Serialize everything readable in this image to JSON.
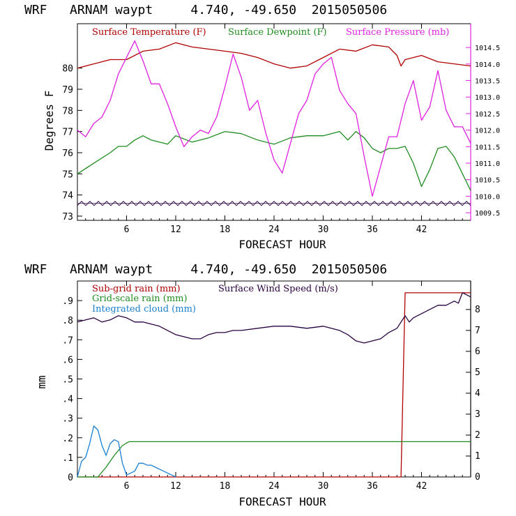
{
  "colors": {
    "temperature": "#b00000",
    "dewpoint": "#1e8c1e",
    "pressure": "#e020e0",
    "subgrid_rain": "#b00000",
    "grid_rain": "#1e8c1e",
    "cloud": "#1a7fd0",
    "wind": "#2a0040",
    "hatch": "#2a0040"
  },
  "chart_data": [
    {
      "type": "line",
      "title": "WRF   ARNAM waypt     4.740, -49.650  2015050506",
      "xlabel": "FORECAST HOUR",
      "ylabel": "Degrees F",
      "xlim": [
        0,
        48
      ],
      "ylim": [
        72.8,
        82.1
      ],
      "xticks": [
        6,
        12,
        18,
        24,
        30,
        36,
        42
      ],
      "xtick_labels": [
        "6",
        "12",
        "18",
        "24",
        "30",
        "36",
        "42"
      ],
      "yticks": [
        73,
        74,
        75,
        76,
        77,
        78,
        79,
        80
      ],
      "ytick_labels": [
        "73",
        "74",
        "75",
        "76",
        "77",
        "78",
        "79",
        "80"
      ],
      "y2lim": [
        1009.27,
        1015.22
      ],
      "y2ticks": [
        1009.5,
        1010.0,
        1010.5,
        1011.0,
        1011.5,
        1012.0,
        1012.5,
        1013.0,
        1013.5,
        1014.0,
        1014.5
      ],
      "y2tick_labels": [
        "1009.5",
        "1010.0",
        "1010.5",
        "1011.0",
        "1011.5",
        "1012.0",
        "1012.5",
        "1013.0",
        "1013.5",
        "1014.0",
        "1014.5"
      ],
      "legend": [
        "Surface Temperature (F)",
        "Surface Dewpoint (F)",
        "Surface Pressure (mb)"
      ],
      "series": [
        {
          "name": "Surface Temperature (F)",
          "axis": "left",
          "color_key": "temperature",
          "x": [
            0,
            2,
            4,
            6,
            8,
            10,
            12,
            14,
            16,
            18,
            20,
            22,
            24,
            26,
            28,
            30,
            32,
            34,
            36,
            38,
            39,
            39.5,
            40,
            42,
            44,
            46,
            48
          ],
          "values": [
            80.0,
            80.2,
            80.4,
            80.4,
            80.8,
            80.9,
            81.2,
            81.0,
            80.9,
            80.8,
            80.7,
            80.5,
            80.2,
            80.0,
            80.1,
            80.5,
            80.9,
            80.8,
            81.1,
            81.0,
            80.6,
            80.1,
            80.4,
            80.6,
            80.3,
            80.2,
            80.1
          ]
        },
        {
          "name": "Surface Dewpoint (F)",
          "axis": "left",
          "color_key": "dewpoint",
          "x": [
            0,
            2,
            4,
            5,
            6,
            7,
            8,
            9,
            10,
            11,
            12,
            14,
            16,
            18,
            20,
            22,
            24,
            26,
            28,
            30,
            32,
            33,
            34,
            35,
            36,
            37,
            38,
            39,
            40,
            41,
            42,
            43,
            44,
            45,
            46,
            47,
            48
          ],
          "values": [
            75.0,
            75.5,
            76.0,
            76.3,
            76.3,
            76.6,
            76.8,
            76.6,
            76.5,
            76.4,
            76.8,
            76.5,
            76.7,
            77.0,
            76.9,
            76.6,
            76.4,
            76.7,
            76.8,
            76.8,
            77.0,
            76.6,
            77.0,
            76.7,
            76.2,
            76.0,
            76.2,
            76.2,
            76.3,
            75.5,
            74.4,
            75.2,
            76.2,
            76.3,
            75.8,
            75.0,
            74.2
          ]
        },
        {
          "name": "Surface Pressure (mb)",
          "axis": "right",
          "color_key": "pressure",
          "x": [
            0,
            1,
            2,
            3,
            4,
            5,
            6,
            7,
            8,
            9,
            10,
            11,
            12,
            13,
            14,
            15,
            16,
            17,
            18,
            19,
            20,
            21,
            22,
            23,
            24,
            25,
            26,
            27,
            28,
            29,
            30,
            31,
            32,
            33,
            34,
            35,
            36,
            37,
            38,
            39,
            40,
            41,
            42,
            43,
            44,
            45,
            46,
            47,
            48
          ],
          "values": [
            1012.0,
            1011.8,
            1012.2,
            1012.4,
            1012.9,
            1013.7,
            1014.2,
            1014.7,
            1014.1,
            1013.4,
            1013.4,
            1012.8,
            1012.1,
            1011.5,
            1011.8,
            1012.0,
            1011.9,
            1012.4,
            1013.3,
            1014.3,
            1013.6,
            1012.6,
            1012.9,
            1011.9,
            1011.1,
            1010.7,
            1011.6,
            1012.5,
            1012.9,
            1013.7,
            1014.0,
            1014.2,
            1013.2,
            1012.8,
            1012.5,
            1011.2,
            1010.0,
            1010.9,
            1011.8,
            1011.8,
            1012.8,
            1013.5,
            1012.3,
            1012.7,
            1013.8,
            1012.6,
            1012.1,
            1012.1,
            1011.6
          ]
        },
        {
          "name": "Hatch band",
          "axis": "left",
          "color_key": "hatch",
          "style": "zigzag",
          "x": [
            0,
            48
          ],
          "values": [
            73.5,
            73.7
          ]
        }
      ]
    },
    {
      "type": "line",
      "title": "WRF   ARNAM waypt     4.740, -49.650  2015050506",
      "xlabel": "FORECAST HOUR",
      "ylabel": "mm",
      "xlim": [
        0,
        48
      ],
      "ylim": [
        0,
        1.0
      ],
      "xticks": [
        6,
        12,
        18,
        24,
        30,
        36,
        42
      ],
      "xtick_labels": [
        "6",
        "12",
        "18",
        "24",
        "30",
        "36",
        "42"
      ],
      "yticks": [
        0,
        0.1,
        0.2,
        0.3,
        0.4,
        0.5,
        0.6,
        0.7,
        0.8,
        0.9
      ],
      "ytick_labels": [
        "0",
        ".1",
        ".2",
        ".3",
        ".4",
        ".5",
        ".6",
        ".7",
        ".8",
        ".9"
      ],
      "y2lim": [
        0,
        9.36
      ],
      "y2ticks": [
        0,
        1,
        2,
        3,
        4,
        5,
        6,
        7,
        8
      ],
      "y2tick_labels": [
        "0",
        "1",
        "2",
        "3",
        "4",
        "5",
        "6",
        "7",
        "8"
      ],
      "legend": [
        "Sub-grid rain (mm)",
        "Grid-scale rain (mm)",
        "Integrated cloud (mm)",
        "Surface Wind Speed (m/s)"
      ],
      "series": [
        {
          "name": "Sub-grid rain (mm)",
          "axis": "left",
          "color_key": "subgrid_rain",
          "x": [
            0,
            39.5,
            40.0,
            48
          ],
          "values": [
            0,
            0,
            0.94,
            0.94
          ]
        },
        {
          "name": "Grid-scale rain (mm)",
          "axis": "left",
          "color_key": "grid_rain",
          "x": [
            0,
            2.5,
            3.5,
            4.5,
            5.5,
            6.3,
            7,
            48
          ],
          "values": [
            0,
            0,
            0.05,
            0.11,
            0.16,
            0.18,
            0.18,
            0.18
          ]
        },
        {
          "name": "Integrated cloud (mm)",
          "axis": "left",
          "color_key": "cloud",
          "x": [
            0,
            0.5,
            1,
            1.5,
            2,
            2.5,
            3,
            3.5,
            4,
            4.5,
            5,
            5.5,
            6,
            6.5,
            7,
            7.5,
            8,
            8.5,
            9,
            9.5,
            10,
            10.5,
            11,
            11.5,
            12
          ],
          "values": [
            0,
            0.08,
            0.1,
            0.17,
            0.26,
            0.24,
            0.16,
            0.11,
            0.17,
            0.19,
            0.18,
            0.07,
            0.01,
            0.02,
            0.03,
            0.07,
            0.07,
            0.06,
            0.06,
            0.05,
            0.04,
            0.03,
            0.02,
            0.01,
            0
          ]
        },
        {
          "name": "Surface Wind Speed (m/s)",
          "axis": "right",
          "color_key": "wind",
          "x": [
            0,
            1,
            2,
            3,
            4,
            5,
            6,
            7,
            8,
            9,
            10,
            11,
            12,
            13,
            14,
            15,
            16,
            17,
            18,
            19,
            20,
            22,
            24,
            26,
            28,
            30,
            32,
            33,
            34,
            35,
            36,
            37,
            38,
            39,
            40,
            40.5,
            41,
            42,
            43,
            44,
            45,
            46,
            46.5,
            47,
            48
          ],
          "values": [
            7.4,
            7.5,
            7.6,
            7.4,
            7.5,
            7.7,
            7.6,
            7.4,
            7.4,
            7.3,
            7.2,
            7.0,
            6.8,
            6.7,
            6.6,
            6.6,
            6.8,
            6.9,
            6.9,
            7.0,
            7.0,
            7.1,
            7.2,
            7.2,
            7.1,
            7.2,
            7.0,
            6.8,
            6.5,
            6.4,
            6.5,
            6.6,
            6.9,
            7.1,
            7.7,
            7.4,
            7.6,
            7.8,
            8.0,
            8.2,
            8.2,
            8.4,
            8.3,
            8.8,
            8.6
          ]
        }
      ]
    }
  ]
}
